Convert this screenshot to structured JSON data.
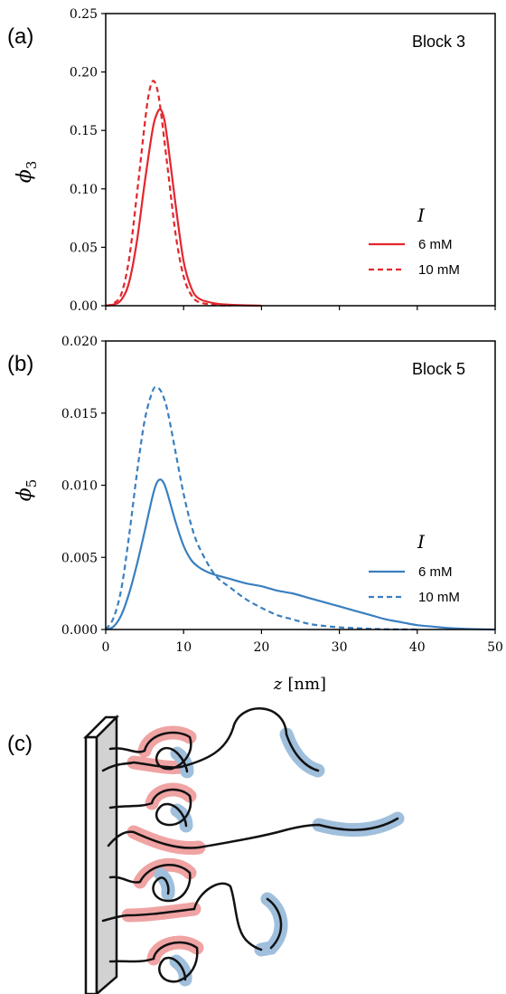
{
  "colors": {
    "red": "#e3262d",
    "blue": "#3a7fbf",
    "chain": "#111111",
    "pinkShade": "#f0a3a3",
    "blueShade": "#9fbfdc",
    "wallFill": "#d2d2d2"
  },
  "chart_data": [
    {
      "panel": "(a)",
      "type": "line",
      "title": "Block 3",
      "ylabel_symbol": "ϕ",
      "ylabel_sub": "3",
      "xlim": [
        0,
        50
      ],
      "ylim": [
        0,
        0.25
      ],
      "yticks": [
        "0.00",
        "0.05",
        "0.10",
        "0.15",
        "0.20",
        "0.25"
      ],
      "yticks_values": [
        0,
        0.05,
        0.1,
        0.15,
        0.2,
        0.25
      ],
      "legend_title": "I",
      "legend_position": "lower-right",
      "series": [
        {
          "name": "6 mM",
          "style": "solid",
          "x": [
            0,
            1,
            2,
            3,
            4,
            5,
            6,
            6.5,
            7,
            7.5,
            8,
            9,
            10,
            11,
            12,
            14,
            16,
            18,
            20
          ],
          "y": [
            0,
            0.001,
            0.005,
            0.02,
            0.055,
            0.105,
            0.15,
            0.163,
            0.168,
            0.16,
            0.138,
            0.085,
            0.038,
            0.015,
            0.006,
            0.002,
            0.0008,
            0.0003,
            0
          ]
        },
        {
          "name": "10 mM",
          "style": "dashed",
          "x": [
            0,
            1,
            2,
            3,
            4,
            5,
            5.5,
            6,
            6.5,
            7,
            8,
            9,
            10,
            11,
            12,
            14,
            16
          ],
          "y": [
            0,
            0.002,
            0.01,
            0.04,
            0.095,
            0.155,
            0.18,
            0.192,
            0.188,
            0.17,
            0.115,
            0.06,
            0.025,
            0.009,
            0.003,
            0.0008,
            0
          ]
        }
      ]
    },
    {
      "panel": "(b)",
      "type": "line",
      "title": "Block 5",
      "ylabel_symbol": "ϕ",
      "ylabel_sub": "5",
      "xlabel_symbol": "z",
      "xlabel_unit": "[nm]",
      "xlim": [
        0,
        50
      ],
      "ylim": [
        0,
        0.02
      ],
      "xticks": [
        "0",
        "10",
        "20",
        "30",
        "40",
        "50"
      ],
      "xticks_values": [
        0,
        10,
        20,
        30,
        40,
        50
      ],
      "yticks": [
        "0.000",
        "0.005",
        "0.010",
        "0.015",
        "0.020"
      ],
      "yticks_values": [
        0,
        0.005,
        0.01,
        0.015,
        0.02
      ],
      "legend_title": "I",
      "legend_position": "lower-right",
      "series": [
        {
          "name": "6 mM",
          "style": "solid",
          "x": [
            0,
            1,
            2,
            3,
            4,
            5,
            6,
            6.5,
            7,
            7.5,
            8,
            9,
            10,
            11,
            12,
            13,
            14,
            16,
            18,
            20,
            22,
            24,
            26,
            28,
            30,
            32,
            34,
            36,
            38,
            40,
            42,
            44,
            46,
            48,
            50
          ],
          "y": [
            0,
            0.0002,
            0.001,
            0.0025,
            0.0045,
            0.0068,
            0.0092,
            0.0101,
            0.0104,
            0.0101,
            0.0093,
            0.0074,
            0.0058,
            0.0048,
            0.0043,
            0.004,
            0.0038,
            0.0035,
            0.0032,
            0.003,
            0.0027,
            0.0025,
            0.0022,
            0.0019,
            0.0016,
            0.0013,
            0.001,
            0.0007,
            0.0005,
            0.0003,
            0.0002,
            0.0001,
            5e-05,
            2e-05,
            0
          ]
        },
        {
          "name": "10 mM",
          "style": "dashed",
          "x": [
            0,
            1,
            2,
            3,
            4,
            5,
            6,
            6.5,
            7,
            7.5,
            8,
            9,
            10,
            11,
            12,
            14,
            16,
            18,
            20,
            22,
            24,
            26,
            28,
            30,
            32,
            34,
            36,
            38,
            40
          ],
          "y": [
            0,
            0.0008,
            0.0028,
            0.0065,
            0.0108,
            0.0145,
            0.0165,
            0.0168,
            0.0166,
            0.016,
            0.015,
            0.0122,
            0.0094,
            0.0072,
            0.0057,
            0.0038,
            0.0029,
            0.0021,
            0.0015,
            0.001,
            0.0007,
            0.0004,
            0.00025,
            0.00015,
            0.0001,
            5e-05,
            2e-05,
            1e-05,
            0
          ]
        }
      ]
    }
  ],
  "schematic": {
    "panel": "(c)"
  }
}
